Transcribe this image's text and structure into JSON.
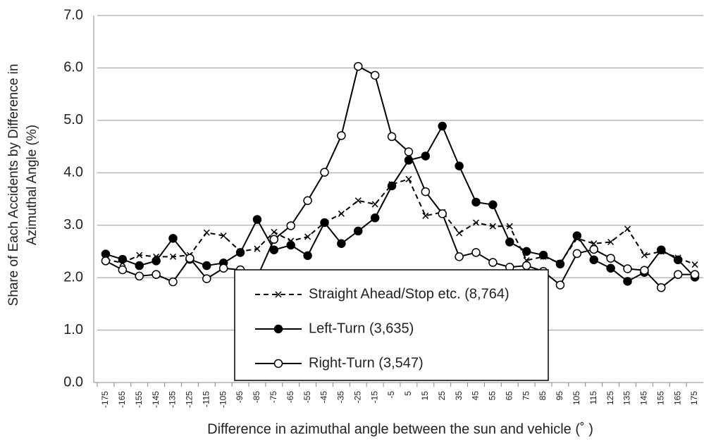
{
  "chart_data": {
    "type": "line",
    "ylabel": [
      "Share of Each Accidents by Difference in",
      "Azimuthal Angle (%)"
    ],
    "xlabel": "Difference in azimuthal angle between the sun and vehicle (˚  )",
    "categories": [
      "-175",
      "-165",
      "-155",
      "-145",
      "-135",
      "-125",
      "-115",
      "-105",
      "-95",
      "-85",
      "-75",
      "-65",
      "-55",
      "-45",
      "-35",
      "-25",
      "-15",
      "-5",
      "5",
      "15",
      "25",
      "35",
      "45",
      "55",
      "65",
      "75",
      "85",
      "95",
      "105",
      "115",
      "125",
      "135",
      "145",
      "155",
      "165",
      "175"
    ],
    "ylim": [
      0,
      7
    ],
    "yticks": [
      {
        "value": 0,
        "label": "0.0"
      },
      {
        "value": 1,
        "label": "1.0"
      },
      {
        "value": 2,
        "label": "2.0"
      },
      {
        "value": 3,
        "label": "3.0"
      },
      {
        "value": 4,
        "label": "4.0"
      },
      {
        "value": 5,
        "label": "5.0"
      },
      {
        "value": 6,
        "label": "6.0"
      },
      {
        "value": 7,
        "label": "7.0"
      }
    ],
    "grid": true,
    "series": [
      {
        "name": "Straight Ahead/Stop etc. (8,764)",
        "color": "#000000",
        "line_style": "dashed",
        "marker": "x",
        "values": [
          2.35,
          2.28,
          2.43,
          2.4,
          2.4,
          2.43,
          2.86,
          2.8,
          2.5,
          2.55,
          2.87,
          2.7,
          2.78,
          3.05,
          3.22,
          3.47,
          3.4,
          3.78,
          3.88,
          3.18,
          3.25,
          2.85,
          3.05,
          2.98,
          2.98,
          2.33,
          2.4,
          2.28,
          2.75,
          2.65,
          2.68,
          2.93,
          2.43,
          2.5,
          2.38,
          2.25
        ]
      },
      {
        "name": "Left-Turn (3,635)",
        "color": "#000000",
        "line_style": "solid",
        "marker": "filled-circle",
        "values": [
          2.45,
          2.35,
          2.23,
          2.32,
          2.75,
          2.35,
          2.23,
          2.28,
          2.48,
          3.11,
          2.53,
          2.62,
          2.42,
          3.05,
          2.65,
          2.89,
          3.14,
          3.75,
          4.24,
          4.32,
          4.89,
          4.13,
          3.44,
          3.39,
          2.68,
          2.5,
          2.43,
          2.26,
          2.8,
          2.34,
          2.18,
          1.93,
          2.1,
          2.53,
          2.34,
          2.01
        ]
      },
      {
        "name": "Right-Turn (3,547)",
        "color": "#000000",
        "line_style": "solid",
        "marker": "open-circle",
        "values": [
          2.32,
          2.15,
          2.03,
          2.06,
          1.92,
          2.37,
          1.98,
          2.18,
          2.15,
          2.01,
          2.73,
          2.99,
          3.47,
          4.01,
          4.71,
          6.03,
          5.86,
          4.69,
          4.4,
          3.64,
          3.22,
          2.4,
          2.48,
          2.29,
          2.2,
          2.23,
          2.12,
          1.86,
          2.46,
          2.54,
          2.37,
          2.17,
          2.14,
          1.81,
          2.06,
          2.06
        ]
      }
    ]
  }
}
